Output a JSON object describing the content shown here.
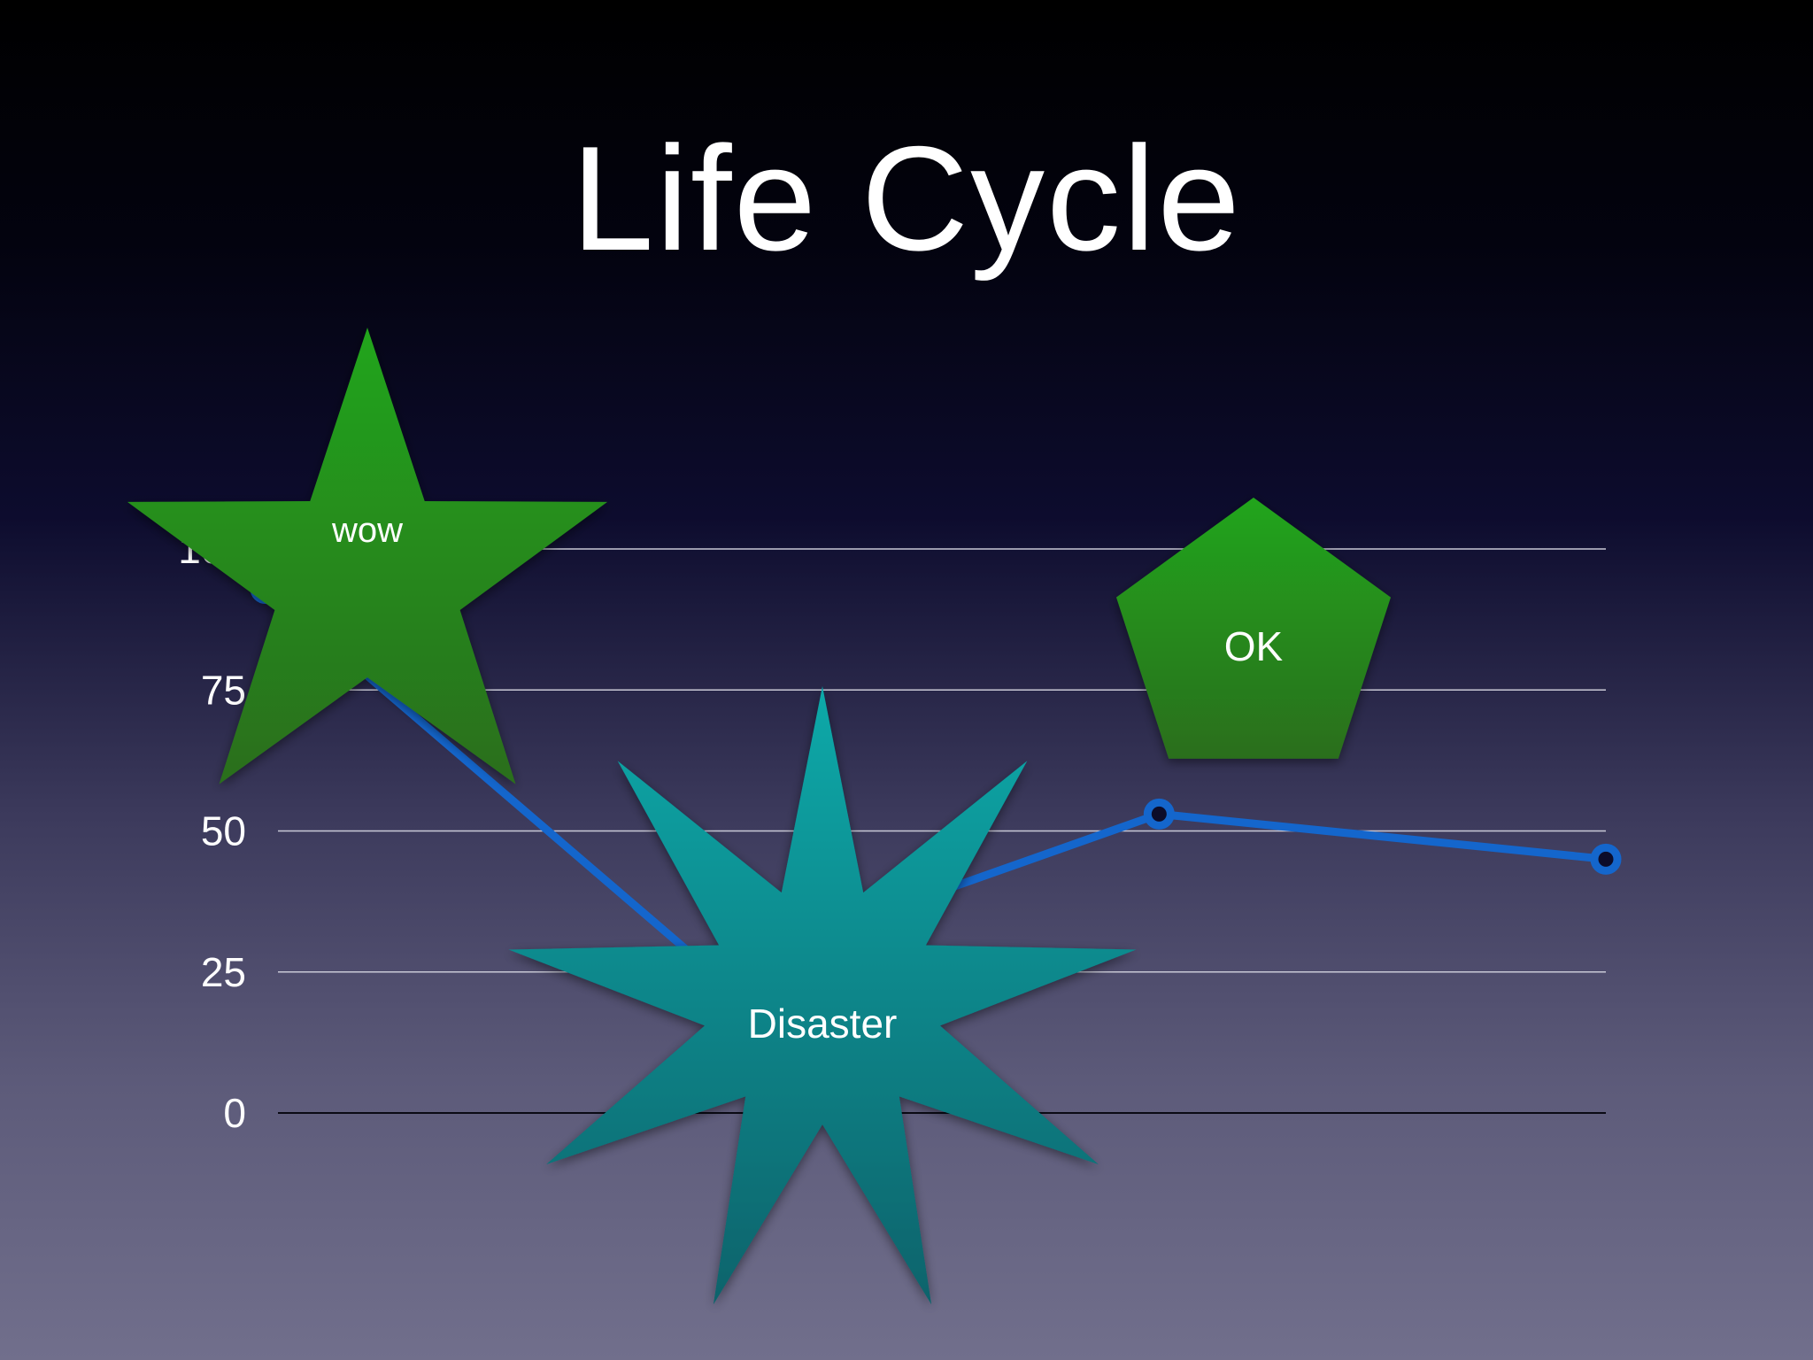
{
  "slide": {
    "title": "Life Cycle"
  },
  "chart_data": {
    "type": "line",
    "x": [
      1,
      2,
      3,
      4
    ],
    "series": [
      {
        "values": [
          93,
          25,
          53,
          45
        ]
      }
    ],
    "yticks": [
      0,
      25,
      50,
      75,
      100
    ],
    "ylim": [
      0,
      100
    ],
    "grid": true,
    "line_color": "#1466cc"
  },
  "callouts": {
    "wow": {
      "label": "wow",
      "color": "#1f8f1f"
    },
    "ok": {
      "label": "OK",
      "color": "#1f8f1f"
    },
    "disaster": {
      "label": "Disaster",
      "color": "#0a8f95"
    }
  }
}
